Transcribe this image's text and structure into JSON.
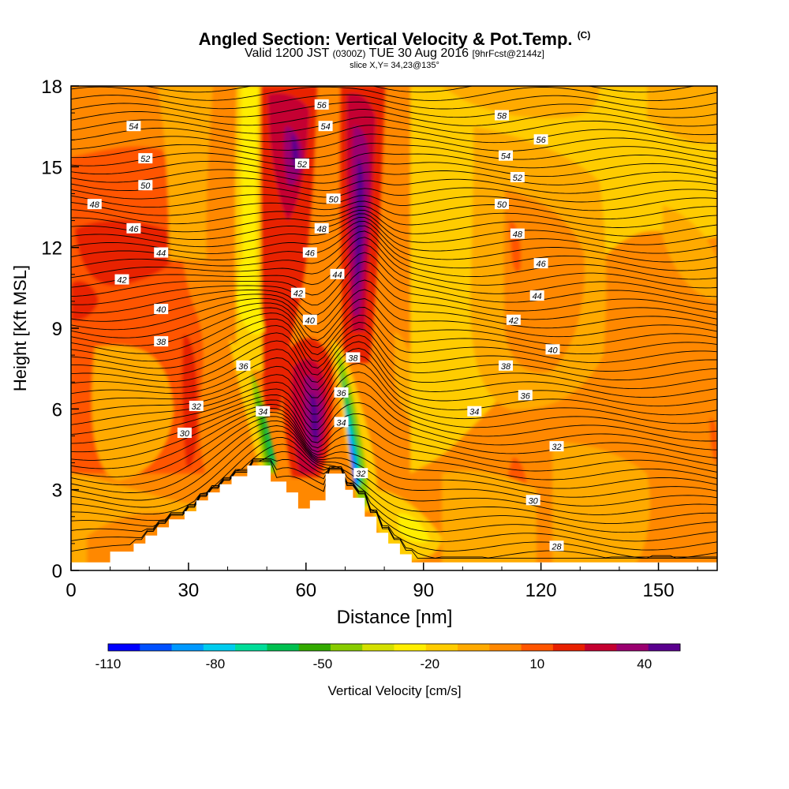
{
  "title": "Angled Section: Vertical Velocity & Pot.Temp.",
  "title_unit_tag": "(C)",
  "subtitle": {
    "valid": "Valid 1200 JST",
    "utc": "(0300Z)",
    "date": "TUE 30 Aug 2016",
    "forecast": "[9hrFcst@2144z]"
  },
  "slice_note": "slice X,Y= 34,23@135°",
  "chart_data": {
    "type": "heatmap",
    "xlabel": "Distance [nm]",
    "ylabel": "Height [Kft MSL]",
    "xlim": [
      0,
      165
    ],
    "ylim": [
      0,
      18
    ],
    "x_ticks": [
      0,
      30,
      60,
      90,
      120,
      150
    ],
    "y_ticks": [
      0,
      3,
      6,
      9,
      12,
      15,
      18
    ],
    "colorbar": {
      "label": "Vertical Velocity [cm/s]",
      "min": -110,
      "max": 50,
      "step": 10,
      "tick_values": [
        -110,
        -80,
        -50,
        -20,
        10,
        40
      ],
      "colors": [
        "#0000ff",
        "#0050ff",
        "#0099ff",
        "#00ccee",
        "#00dd99",
        "#00c050",
        "#33aa00",
        "#88cc00",
        "#d4e000",
        "#ffee00",
        "#ffcc00",
        "#ffaa00",
        "#ff8800",
        "#ff5500",
        "#e82000",
        "#c40030",
        "#9a0070",
        "#5a008e"
      ]
    },
    "terrain_profile_kft": [
      [
        0,
        0.3
      ],
      [
        10,
        0.3
      ],
      [
        10,
        0.7
      ],
      [
        16,
        0.7
      ],
      [
        16,
        1.0
      ],
      [
        19,
        1.0
      ],
      [
        19,
        1.3
      ],
      [
        22,
        1.3
      ],
      [
        22,
        1.6
      ],
      [
        25,
        1.6
      ],
      [
        25,
        1.9
      ],
      [
        29,
        1.9
      ],
      [
        29,
        2.2
      ],
      [
        32,
        2.2
      ],
      [
        32,
        2.6
      ],
      [
        35,
        2.6
      ],
      [
        35,
        2.9
      ],
      [
        38,
        2.9
      ],
      [
        38,
        3.2
      ],
      [
        41,
        3.2
      ],
      [
        41,
        3.5
      ],
      [
        45,
        3.5
      ],
      [
        45,
        3.9
      ],
      [
        51,
        3.9
      ],
      [
        51,
        3.3
      ],
      [
        55,
        3.3
      ],
      [
        55,
        2.9
      ],
      [
        58,
        2.9
      ],
      [
        58,
        2.3
      ],
      [
        61,
        2.3
      ],
      [
        61,
        2.6
      ],
      [
        65,
        2.6
      ],
      [
        65,
        3.6
      ],
      [
        70,
        3.6
      ],
      [
        70,
        3.0
      ],
      [
        72,
        3.0
      ],
      [
        72,
        2.7
      ],
      [
        75,
        2.7
      ],
      [
        75,
        2.0
      ],
      [
        78,
        2.0
      ],
      [
        78,
        1.4
      ],
      [
        81,
        1.4
      ],
      [
        81,
        1.0
      ],
      [
        84,
        1.0
      ],
      [
        84,
        0.6
      ],
      [
        87,
        0.6
      ],
      [
        87,
        0.3
      ],
      [
        165,
        0.3
      ]
    ],
    "isentrope_labels": [
      {
        "v": "56",
        "x": 64,
        "y": 17.3
      },
      {
        "v": "54",
        "x": 16,
        "y": 16.5
      },
      {
        "v": "54",
        "x": 65,
        "y": 16.5
      },
      {
        "v": "58",
        "x": 110,
        "y": 16.9
      },
      {
        "v": "56",
        "x": 120,
        "y": 16.0
      },
      {
        "v": "52",
        "x": 19,
        "y": 15.3
      },
      {
        "v": "52",
        "x": 59,
        "y": 15.1
      },
      {
        "v": "54",
        "x": 111,
        "y": 15.4
      },
      {
        "v": "52",
        "x": 114,
        "y": 14.6
      },
      {
        "v": "50",
        "x": 19,
        "y": 14.3
      },
      {
        "v": "50",
        "x": 67,
        "y": 13.8
      },
      {
        "v": "50",
        "x": 110,
        "y": 13.6
      },
      {
        "v": "48",
        "x": 6,
        "y": 13.6
      },
      {
        "v": "46",
        "x": 16,
        "y": 12.7
      },
      {
        "v": "48",
        "x": 64,
        "y": 12.7
      },
      {
        "v": "48",
        "x": 114,
        "y": 12.5
      },
      {
        "v": "46",
        "x": 61,
        "y": 11.8
      },
      {
        "v": "44",
        "x": 23,
        "y": 11.8
      },
      {
        "v": "46",
        "x": 120,
        "y": 11.4
      },
      {
        "v": "44",
        "x": 68,
        "y": 11.0
      },
      {
        "v": "42",
        "x": 13,
        "y": 10.8
      },
      {
        "v": "42",
        "x": 58,
        "y": 10.3
      },
      {
        "v": "44",
        "x": 119,
        "y": 10.2
      },
      {
        "v": "40",
        "x": 23,
        "y": 9.7
      },
      {
        "v": "40",
        "x": 61,
        "y": 9.3
      },
      {
        "v": "42",
        "x": 113,
        "y": 9.3
      },
      {
        "v": "38",
        "x": 23,
        "y": 8.5
      },
      {
        "v": "40",
        "x": 123,
        "y": 8.2
      },
      {
        "v": "38",
        "x": 72,
        "y": 7.9
      },
      {
        "v": "36",
        "x": 44,
        "y": 7.6
      },
      {
        "v": "38",
        "x": 111,
        "y": 7.6
      },
      {
        "v": "36",
        "x": 69,
        "y": 6.6
      },
      {
        "v": "36",
        "x": 116,
        "y": 6.5
      },
      {
        "v": "32",
        "x": 32,
        "y": 6.1
      },
      {
        "v": "34",
        "x": 49,
        "y": 5.9
      },
      {
        "v": "34",
        "x": 103,
        "y": 5.9
      },
      {
        "v": "34",
        "x": 69,
        "y": 5.5
      },
      {
        "v": "30",
        "x": 29,
        "y": 5.1
      },
      {
        "v": "32",
        "x": 124,
        "y": 4.6
      },
      {
        "v": "32",
        "x": 74,
        "y": 3.6
      },
      {
        "v": "30",
        "x": 118,
        "y": 2.6
      },
      {
        "v": "28",
        "x": 124,
        "y": 0.9
      }
    ]
  }
}
